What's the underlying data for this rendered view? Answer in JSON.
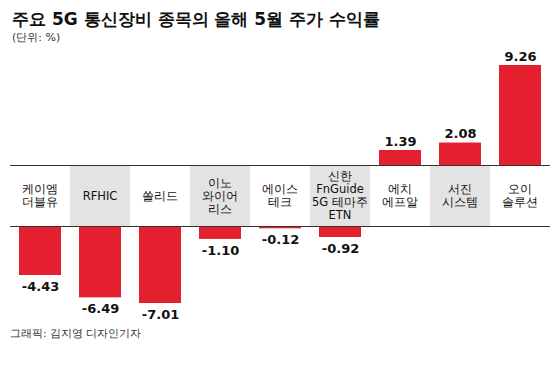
{
  "chart_data": {
    "type": "bar",
    "title": "주요 5G 통신장비 종목의 올해 5월 주가 수익률",
    "subtitle": "(단위: %)",
    "caption": "그래픽: 김지영 디자인기자",
    "categories": [
      "케이엠\n더블유",
      "RFHIC",
      "쏠리드",
      "이노\n와이어\n리스",
      "에이스\n테크",
      "신한\nFnGuide\n5G 테마주\nETN",
      "에치\n에프알",
      "서진\n시스템",
      "오이\n솔루션"
    ],
    "values": [
      -4.43,
      -6.49,
      -7.01,
      -1.1,
      -0.12,
      -0.92,
      1.39,
      2.08,
      9.26
    ],
    "value_labels": [
      "-4.43",
      "-6.49",
      "-7.01",
      "-1.10",
      "-0.12",
      "-0.92",
      "1.39",
      "2.08",
      "9.26"
    ],
    "color": "#e4202e",
    "data_labels": true,
    "tick_labels": "x"
  }
}
